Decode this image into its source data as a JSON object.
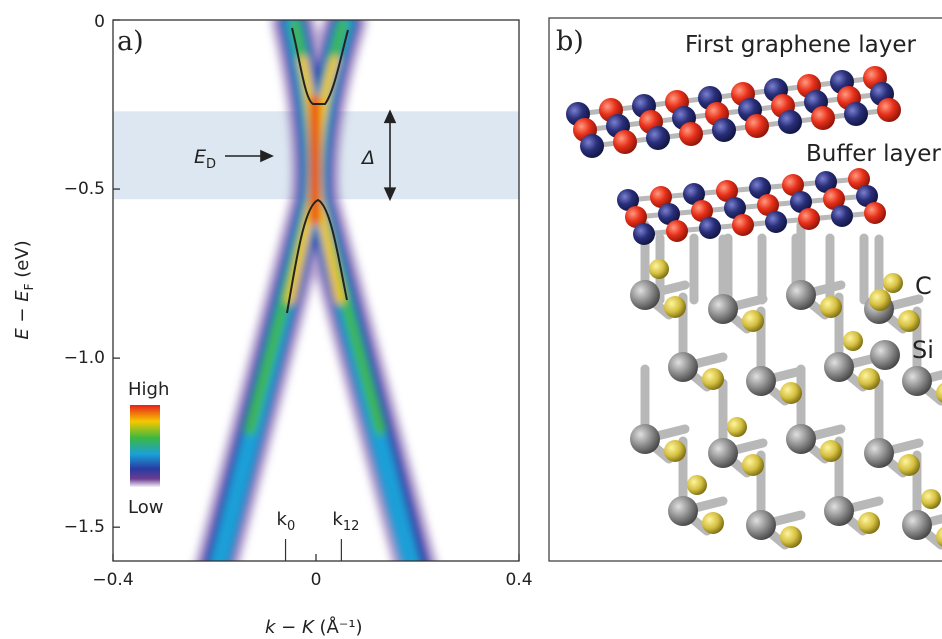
{
  "panel_a": {
    "label": "a)",
    "xlim": [
      -0.4,
      0.4
    ],
    "ylim": [
      -1.6,
      0
    ],
    "xticks": [
      {
        "value": -0.4,
        "label": "−0.4"
      },
      0,
      0.4
    ],
    "yticks": [
      0,
      {
        "value": -0.5,
        "label": "−0.5"
      },
      {
        "value": -1.0,
        "label": "−1.0"
      },
      {
        "value": -1.5,
        "label": "−1.5"
      }
    ],
    "x_label": {
      "main": "k − K",
      "unit": "(Å⁻¹)"
    },
    "y_label": {
      "main": "E − E",
      "sub": "F",
      "unit": "(eV)"
    },
    "gap_band": [
      -0.53,
      -0.27
    ],
    "dirac_point": {
      "main": "E",
      "sub": "D"
    },
    "gap_label": "Δ",
    "k_marks": [
      {
        "main": "k",
        "sub": "0",
        "value": -0.06
      },
      {
        "main": "k",
        "sub": "12",
        "value": 0.05
      }
    ],
    "colorbar": {
      "high": "High",
      "low": "Low"
    }
  },
  "panel_b": {
    "label": "b)",
    "top_layer": "First graphene layer",
    "buffer_layer": "Buffer layer",
    "carbon": "C",
    "silicon": "Si"
  }
}
